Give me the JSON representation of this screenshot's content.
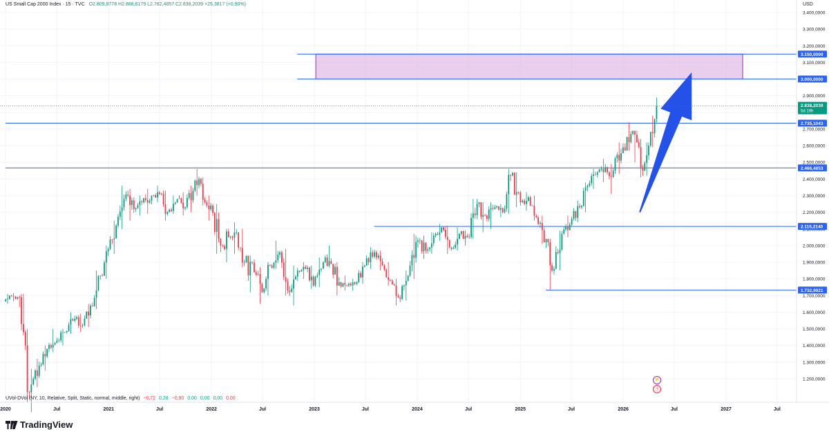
{
  "header": {
    "title": "US Small Cap 2000 Index · 15 · TVC",
    "open": "O2.809,8778",
    "high": "H2.888,6179",
    "low": "L2.782,4857",
    "close": "C2.838,2039",
    "change": "+25,3817 (+0,90%)"
  },
  "currency": "USD",
  "indicator": {
    "label": "UVol-DVol (NY, 10, Relative, Split, Static, normal, middle, right)",
    "values": [
      "−0,72",
      "0,28",
      "−0,90",
      "0,00",
      "0,00",
      "0,00",
      "0,00"
    ]
  },
  "brand": "TradingView",
  "colors": {
    "up": "#089981",
    "down": "#f23645",
    "level_line": "#2962ff",
    "zone_fill": "#e1bee7",
    "zone_border": "#9c27b0",
    "arrow": "#2451e8",
    "price_line": "#089981"
  },
  "chart_data": {
    "type": "candlestick",
    "x_ticks": [
      {
        "label": "2020",
        "date": "2020-01"
      },
      {
        "label": "Jul",
        "date": "2020-07"
      },
      {
        "label": "2021",
        "date": "2021-01"
      },
      {
        "label": "Jul",
        "date": "2021-07"
      },
      {
        "label": "2022",
        "date": "2022-01"
      },
      {
        "label": "Jul",
        "date": "2022-07"
      },
      {
        "label": "2023",
        "date": "2023-01"
      },
      {
        "label": "Jul",
        "date": "2023-07"
      },
      {
        "label": "2024",
        "date": "2024-01"
      },
      {
        "label": "Jul",
        "date": "2024-07"
      },
      {
        "label": "2025",
        "date": "2025-01"
      },
      {
        "label": "Jul",
        "date": "2025-07"
      },
      {
        "label": "2026",
        "date": "2026-01"
      },
      {
        "label": "Jul",
        "date": "2026-07"
      },
      {
        "label": "2027",
        "date": "2027-01"
      },
      {
        "label": "Jul",
        "date": "2027-07"
      }
    ],
    "y_ticks": [
      {
        "label": "1.200,0000",
        "value": 1200
      },
      {
        "label": "1.300,0000",
        "value": 1300
      },
      {
        "label": "1.400,0000",
        "value": 1400
      },
      {
        "label": "1.500,0000",
        "value": 1500
      },
      {
        "label": "1.600,0000",
        "value": 1600
      },
      {
        "label": "1.700,0000",
        "value": 1700
      },
      {
        "label": "1.800,0000",
        "value": 1800
      },
      {
        "label": "1.900,0000",
        "value": 1900
      },
      {
        "label": "2.000,0000",
        "value": 2000
      },
      {
        "label": "2.100,0000",
        "value": 2100
      },
      {
        "label": "2.200,0000",
        "value": 2200
      },
      {
        "label": "2.300,0000",
        "value": 2300
      },
      {
        "label": "2.400,0000",
        "value": 2400
      },
      {
        "label": "2.500,0000",
        "value": 2500
      },
      {
        "label": "2.600,0000",
        "value": 2600
      },
      {
        "label": "2.700,0000",
        "value": 2700
      },
      {
        "label": "2.800,0000",
        "value": 2800
      },
      {
        "label": "2.900,0000",
        "value": 2900
      },
      {
        "label": "3.000,0000",
        "value": 3000
      },
      {
        "label": "3.100,0000",
        "value": 3100
      },
      {
        "label": "3.200,0000",
        "value": 3200
      },
      {
        "label": "3.300,0000",
        "value": 3300
      },
      {
        "label": "3.400,0000",
        "value": 3400
      }
    ],
    "levels": [
      {
        "label": "2.735,1043",
        "value": 2735.1043,
        "start": "2020-01"
      },
      {
        "label": "2.466,4853",
        "value": 2466.4853,
        "start": "2020-01"
      },
      {
        "label": "2.115,2140",
        "value": 2115.214,
        "start": "2023-08"
      },
      {
        "label": "1.732,9921",
        "value": 1732.9921,
        "start": "2025-04"
      }
    ],
    "zone": {
      "top_label": "3.150,0000",
      "top": 3150,
      "bottom_label": "3.000,0000",
      "bottom": 3000,
      "start": "2022-11",
      "end": "2027-03"
    },
    "last_price": {
      "label": "2.838,2039",
      "value": 2838.2039,
      "countdown": "5d 19h"
    },
    "arrow": {
      "from_date": "2026-03",
      "from_value": 2200,
      "to_date": "2026-09",
      "to_value": 3040
    },
    "candles": [
      {
        "date": "2019-12-30",
        "o": 1665,
        "h": 1710,
        "l": 1650,
        "c": 1700
      },
      {
        "date": "2020-01-20",
        "o": 1700,
        "h": 1715,
        "l": 1665,
        "c": 1680
      },
      {
        "date": "2020-02-10",
        "o": 1680,
        "h": 1700,
        "l": 1630,
        "c": 1690
      },
      {
        "date": "2020-02-24",
        "o": 1690,
        "h": 1710,
        "l": 1460,
        "c": 1480
      },
      {
        "date": "2020-03-09",
        "o": 1480,
        "h": 1500,
        "l": 1060,
        "c": 1120
      },
      {
        "date": "2020-03-23",
        "o": 1120,
        "h": 1260,
        "l": 1000,
        "c": 1200
      },
      {
        "date": "2020-04-13",
        "o": 1200,
        "h": 1320,
        "l": 1150,
        "c": 1280
      },
      {
        "date": "2020-05-04",
        "o": 1280,
        "h": 1400,
        "l": 1250,
        "c": 1380
      },
      {
        "date": "2020-06-01",
        "o": 1380,
        "h": 1500,
        "l": 1360,
        "c": 1430
      },
      {
        "date": "2020-07-06",
        "o": 1430,
        "h": 1500,
        "l": 1400,
        "c": 1480
      },
      {
        "date": "2020-08-03",
        "o": 1480,
        "h": 1600,
        "l": 1470,
        "c": 1560
      },
      {
        "date": "2020-09-07",
        "o": 1560,
        "h": 1590,
        "l": 1480,
        "c": 1520
      },
      {
        "date": "2020-10-05",
        "o": 1520,
        "h": 1650,
        "l": 1510,
        "c": 1640
      },
      {
        "date": "2020-11-02",
        "o": 1640,
        "h": 1850,
        "l": 1620,
        "c": 1820
      },
      {
        "date": "2020-12-07",
        "o": 1820,
        "h": 2000,
        "l": 1800,
        "c": 1980
      },
      {
        "date": "2021-01-04",
        "o": 1980,
        "h": 2150,
        "l": 1950,
        "c": 2120
      },
      {
        "date": "2021-02-01",
        "o": 2120,
        "h": 2360,
        "l": 2100,
        "c": 2280
      },
      {
        "date": "2021-03-01",
        "o": 2280,
        "h": 2340,
        "l": 2150,
        "c": 2220
      },
      {
        "date": "2021-04-05",
        "o": 2220,
        "h": 2300,
        "l": 2180,
        "c": 2260
      },
      {
        "date": "2021-05-03",
        "o": 2260,
        "h": 2340,
        "l": 2190,
        "c": 2300
      },
      {
        "date": "2021-06-07",
        "o": 2300,
        "h": 2360,
        "l": 2260,
        "c": 2310
      },
      {
        "date": "2021-07-05",
        "o": 2310,
        "h": 2330,
        "l": 2150,
        "c": 2200
      },
      {
        "date": "2021-08-02",
        "o": 2200,
        "h": 2300,
        "l": 2190,
        "c": 2280
      },
      {
        "date": "2021-09-06",
        "o": 2280,
        "h": 2320,
        "l": 2180,
        "c": 2230
      },
      {
        "date": "2021-10-04",
        "o": 2230,
        "h": 2360,
        "l": 2200,
        "c": 2330
      },
      {
        "date": "2021-11-01",
        "o": 2330,
        "h": 2460,
        "l": 2300,
        "c": 2400
      },
      {
        "date": "2021-11-22",
        "o": 2400,
        "h": 2410,
        "l": 2240,
        "c": 2260
      },
      {
        "date": "2021-12-13",
        "o": 2260,
        "h": 2300,
        "l": 2150,
        "c": 2240
      },
      {
        "date": "2022-01-03",
        "o": 2240,
        "h": 2250,
        "l": 1950,
        "c": 2000
      },
      {
        "date": "2022-02-07",
        "o": 2000,
        "h": 2100,
        "l": 1900,
        "c": 2050
      },
      {
        "date": "2022-03-07",
        "o": 2050,
        "h": 2140,
        "l": 1950,
        "c": 2080
      },
      {
        "date": "2022-04-04",
        "o": 2080,
        "h": 2100,
        "l": 1870,
        "c": 1900
      },
      {
        "date": "2022-05-02",
        "o": 1900,
        "h": 1940,
        "l": 1720,
        "c": 1840
      },
      {
        "date": "2022-06-06",
        "o": 1840,
        "h": 1870,
        "l": 1650,
        "c": 1720
      },
      {
        "date": "2022-07-04",
        "o": 1720,
        "h": 1900,
        "l": 1700,
        "c": 1880
      },
      {
        "date": "2022-08-01",
        "o": 1880,
        "h": 2030,
        "l": 1860,
        "c": 1960
      },
      {
        "date": "2022-09-05",
        "o": 1960,
        "h": 1980,
        "l": 1700,
        "c": 1730
      },
      {
        "date": "2022-10-03",
        "o": 1730,
        "h": 1880,
        "l": 1640,
        "c": 1850
      },
      {
        "date": "2022-11-07",
        "o": 1850,
        "h": 1900,
        "l": 1800,
        "c": 1860
      },
      {
        "date": "2022-12-05",
        "o": 1860,
        "h": 1880,
        "l": 1740,
        "c": 1760
      },
      {
        "date": "2023-01-02",
        "o": 1760,
        "h": 1930,
        "l": 1750,
        "c": 1900
      },
      {
        "date": "2023-02-06",
        "o": 1900,
        "h": 2000,
        "l": 1870,
        "c": 1890
      },
      {
        "date": "2023-03-06",
        "o": 1890,
        "h": 1900,
        "l": 1700,
        "c": 1780
      },
      {
        "date": "2023-04-03",
        "o": 1780,
        "h": 1820,
        "l": 1730,
        "c": 1760
      },
      {
        "date": "2023-05-01",
        "o": 1760,
        "h": 1800,
        "l": 1730,
        "c": 1780
      },
      {
        "date": "2023-06-05",
        "o": 1780,
        "h": 1900,
        "l": 1770,
        "c": 1880
      },
      {
        "date": "2023-07-03",
        "o": 1880,
        "h": 1990,
        "l": 1860,
        "c": 1960
      },
      {
        "date": "2023-08-07",
        "o": 1960,
        "h": 1970,
        "l": 1850,
        "c": 1880
      },
      {
        "date": "2023-09-04",
        "o": 1880,
        "h": 1900,
        "l": 1760,
        "c": 1790
      },
      {
        "date": "2023-10-02",
        "o": 1790,
        "h": 1800,
        "l": 1640,
        "c": 1680
      },
      {
        "date": "2023-11-06",
        "o": 1680,
        "h": 1850,
        "l": 1670,
        "c": 1820
      },
      {
        "date": "2023-12-04",
        "o": 1820,
        "h": 2070,
        "l": 1800,
        "c": 2030
      },
      {
        "date": "2024-01-08",
        "o": 2030,
        "h": 2060,
        "l": 1920,
        "c": 1970
      },
      {
        "date": "2024-02-05",
        "o": 1970,
        "h": 2080,
        "l": 1950,
        "c": 2060
      },
      {
        "date": "2024-03-04",
        "o": 2060,
        "h": 2130,
        "l": 2030,
        "c": 2110
      },
      {
        "date": "2024-04-01",
        "o": 2110,
        "h": 2120,
        "l": 1950,
        "c": 1980
      },
      {
        "date": "2024-05-06",
        "o": 1980,
        "h": 2110,
        "l": 1970,
        "c": 2070
      },
      {
        "date": "2024-06-03",
        "o": 2070,
        "h": 2090,
        "l": 2000,
        "c": 2050
      },
      {
        "date": "2024-07-01",
        "o": 2050,
        "h": 2280,
        "l": 2040,
        "c": 2250
      },
      {
        "date": "2024-08-05",
        "o": 2250,
        "h": 2260,
        "l": 2080,
        "c": 2180
      },
      {
        "date": "2024-09-02",
        "o": 2180,
        "h": 2260,
        "l": 2100,
        "c": 2230
      },
      {
        "date": "2024-10-07",
        "o": 2230,
        "h": 2250,
        "l": 2170,
        "c": 2200
      },
      {
        "date": "2024-11-04",
        "o": 2200,
        "h": 2460,
        "l": 2190,
        "c": 2420
      },
      {
        "date": "2024-12-02",
        "o": 2420,
        "h": 2440,
        "l": 2230,
        "c": 2260
      },
      {
        "date": "2025-01-06",
        "o": 2260,
        "h": 2320,
        "l": 2210,
        "c": 2290
      },
      {
        "date": "2025-02-03",
        "o": 2290,
        "h": 2300,
        "l": 2150,
        "c": 2170
      },
      {
        "date": "2025-03-03",
        "o": 2170,
        "h": 2180,
        "l": 2010,
        "c": 2020
      },
      {
        "date": "2025-03-31",
        "o": 2020,
        "h": 2040,
        "l": 1733,
        "c": 1860
      },
      {
        "date": "2025-05-05",
        "o": 1860,
        "h": 2090,
        "l": 1850,
        "c": 2070
      },
      {
        "date": "2025-06-02",
        "o": 2070,
        "h": 2180,
        "l": 2050,
        "c": 2160
      },
      {
        "date": "2025-07-07",
        "o": 2160,
        "h": 2270,
        "l": 2140,
        "c": 2230
      },
      {
        "date": "2025-08-04",
        "o": 2230,
        "h": 2380,
        "l": 2200,
        "c": 2360
      },
      {
        "date": "2025-09-01",
        "o": 2360,
        "h": 2460,
        "l": 2340,
        "c": 2440
      },
      {
        "date": "2025-10-06",
        "o": 2440,
        "h": 2520,
        "l": 2380,
        "c": 2470
      },
      {
        "date": "2025-11-03",
        "o": 2470,
        "h": 2490,
        "l": 2310,
        "c": 2450
      },
      {
        "date": "2025-12-01",
        "o": 2450,
        "h": 2620,
        "l": 2430,
        "c": 2590
      },
      {
        "date": "2026-01-05",
        "o": 2590,
        "h": 2740,
        "l": 2570,
        "c": 2670
      },
      {
        "date": "2026-02-02",
        "o": 2670,
        "h": 2690,
        "l": 2500,
        "c": 2620
      },
      {
        "date": "2026-02-23",
        "o": 2620,
        "h": 2640,
        "l": 2410,
        "c": 2450
      },
      {
        "date": "2026-03-16",
        "o": 2450,
        "h": 2620,
        "l": 2420,
        "c": 2600
      },
      {
        "date": "2026-04-06",
        "o": 2600,
        "h": 2780,
        "l": 2590,
        "c": 2760
      },
      {
        "date": "2026-04-27",
        "o": 2760,
        "h": 2889,
        "l": 2740,
        "c": 2838
      }
    ]
  }
}
